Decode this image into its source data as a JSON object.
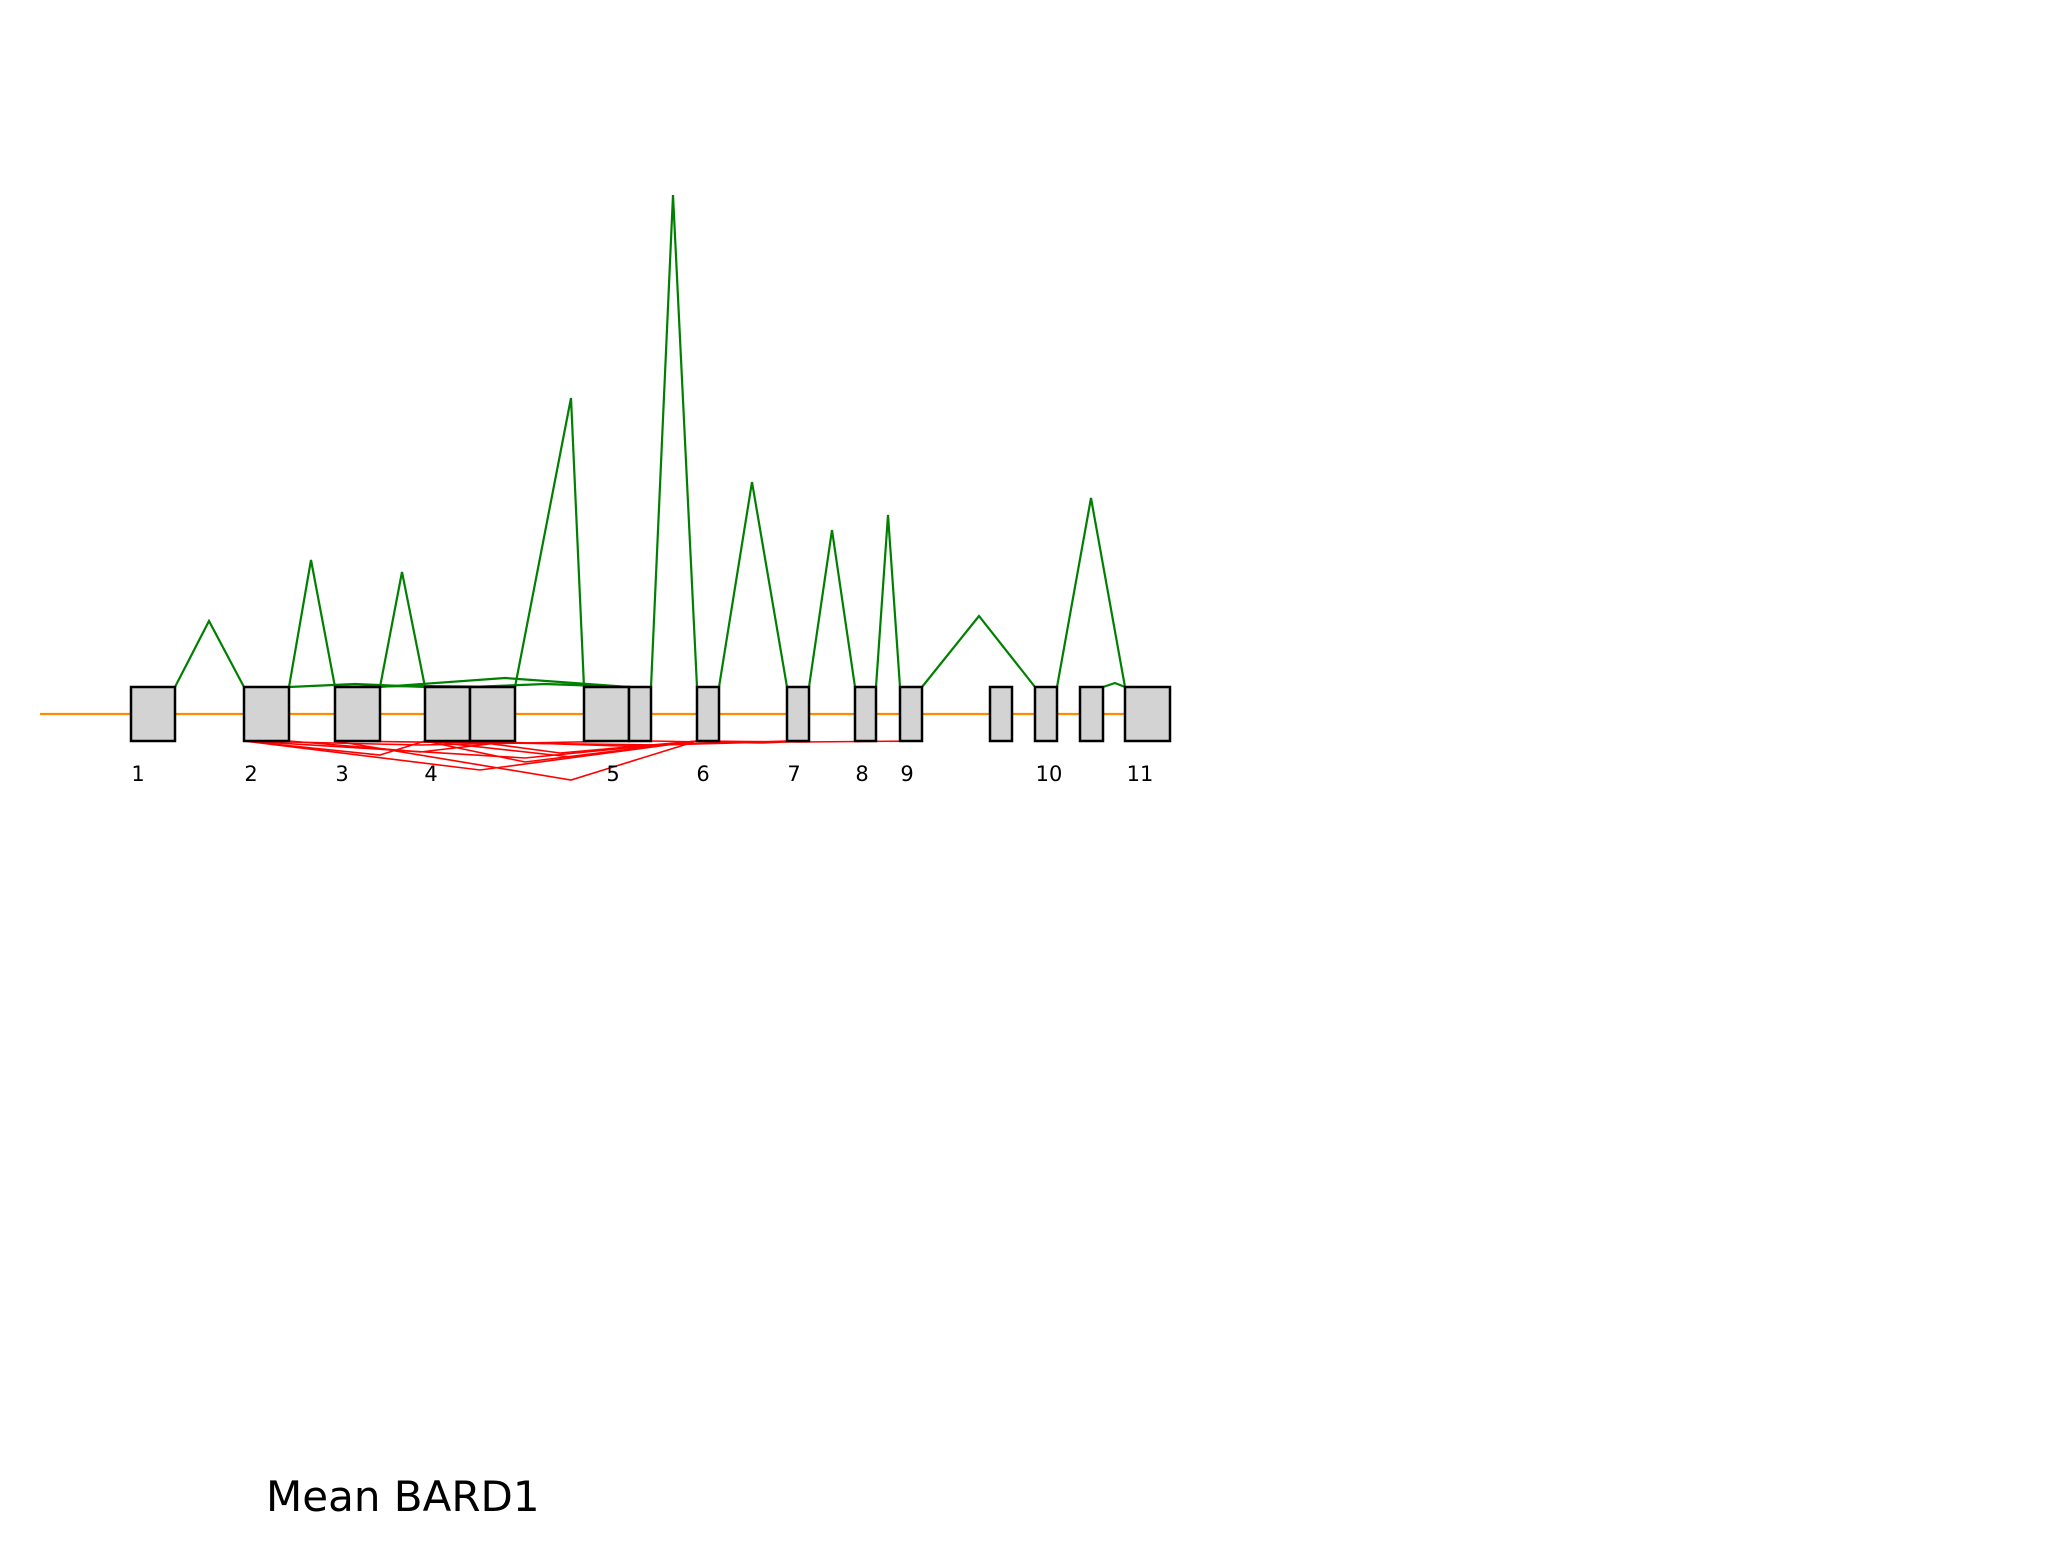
{
  "caption": "Mean BARD1",
  "colors": {
    "background": "#ffffff",
    "intron_line": "#ff8c00",
    "exon_fill": "#d3d3d3",
    "exon_stroke": "#000000",
    "upper_junction": "#008000",
    "lower_junction": "#ff0000",
    "label": "#000000"
  },
  "exon_labels": [
    "1",
    "2",
    "3",
    "4",
    "5",
    "6",
    "7",
    "8",
    "9",
    "10",
    "11"
  ]
}
